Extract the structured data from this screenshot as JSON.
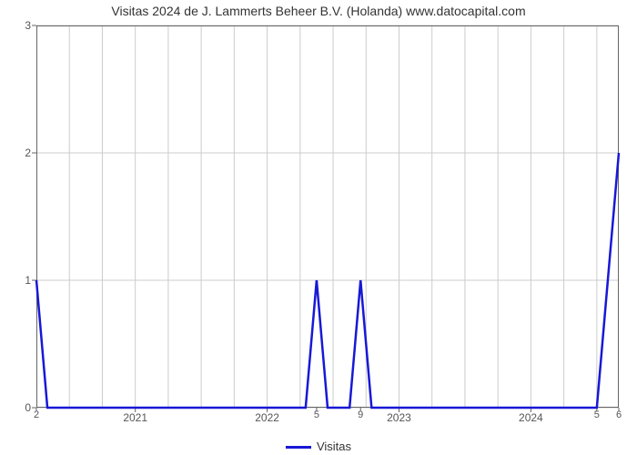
{
  "chart": {
    "type": "line",
    "title": "Visitas 2024 de J. Lammerts Beheer B.V. (Holanda) www.datocapital.com",
    "title_fontsize": 14,
    "title_color": "#333333",
    "background_color": "#ffffff",
    "plot_border_color": "#666666",
    "grid_color": "#cccccc",
    "grid_width": 1,
    "line_color": "#1818d6",
    "line_width": 2.5,
    "x": {
      "min": 0,
      "max": 53,
      "major_ticks": [
        {
          "pos": 9,
          "label": "2021"
        },
        {
          "pos": 21,
          "label": "2022"
        },
        {
          "pos": 33,
          "label": "2023"
        },
        {
          "pos": 45,
          "label": "2024"
        }
      ],
      "minor_ticks": [
        {
          "pos": 0,
          "label": "2"
        },
        {
          "pos": 25.5,
          "label": "5"
        },
        {
          "pos": 29.5,
          "label": "9"
        },
        {
          "pos": 51,
          "label": "5"
        },
        {
          "pos": 53,
          "label": "6"
        }
      ],
      "grid_positions": [
        3,
        6,
        9,
        12,
        15,
        18,
        21,
        24,
        27,
        30,
        33,
        36,
        39,
        42,
        45,
        48,
        51
      ]
    },
    "y": {
      "min": 0,
      "max": 3,
      "ticks": [
        0,
        1,
        2,
        3
      ]
    },
    "series": {
      "label": "Visitas",
      "points": [
        [
          0.0,
          1.0
        ],
        [
          1.0,
          0.0
        ],
        [
          24.5,
          0.0
        ],
        [
          25.5,
          1.0
        ],
        [
          26.5,
          0.0
        ],
        [
          28.5,
          0.0
        ],
        [
          29.5,
          1.0
        ],
        [
          30.5,
          0.0
        ],
        [
          51.0,
          0.0
        ],
        [
          53.0,
          2.0
        ]
      ]
    },
    "legend": {
      "label": "Visitas",
      "swatch_color": "#1818d6"
    }
  }
}
